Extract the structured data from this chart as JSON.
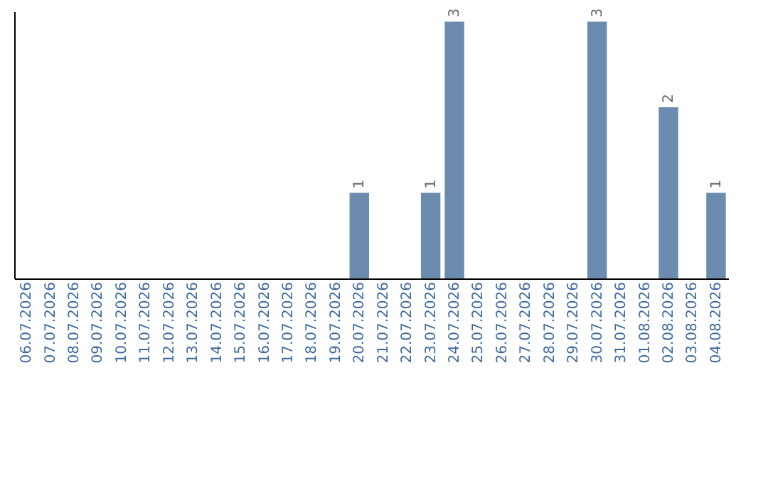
{
  "chart_data": {
    "type": "bar",
    "categories": [
      "06.07.2026",
      "07.07.2026",
      "08.07.2026",
      "09.07.2026",
      "10.07.2026",
      "11.07.2026",
      "12.07.2026",
      "13.07.2026",
      "14.07.2026",
      "15.07.2026",
      "16.07.2026",
      "17.07.2026",
      "18.07.2026",
      "19.07.2026",
      "20.07.2026",
      "21.07.2026",
      "22.07.2026",
      "23.07.2026",
      "24.07.2026",
      "25.07.2026",
      "26.07.2026",
      "27.07.2026",
      "28.07.2026",
      "29.07.2026",
      "30.07.2026",
      "31.07.2026",
      "01.08.2026",
      "02.08.2026",
      "03.08.2026",
      "04.08.2026"
    ],
    "values": [
      null,
      null,
      null,
      null,
      null,
      null,
      null,
      null,
      null,
      null,
      null,
      null,
      null,
      null,
      1,
      null,
      null,
      1,
      3,
      null,
      null,
      null,
      null,
      null,
      3,
      null,
      null,
      2,
      null,
      1
    ],
    "data_labels": true,
    "color": "#6b8cae",
    "grid": false
  }
}
